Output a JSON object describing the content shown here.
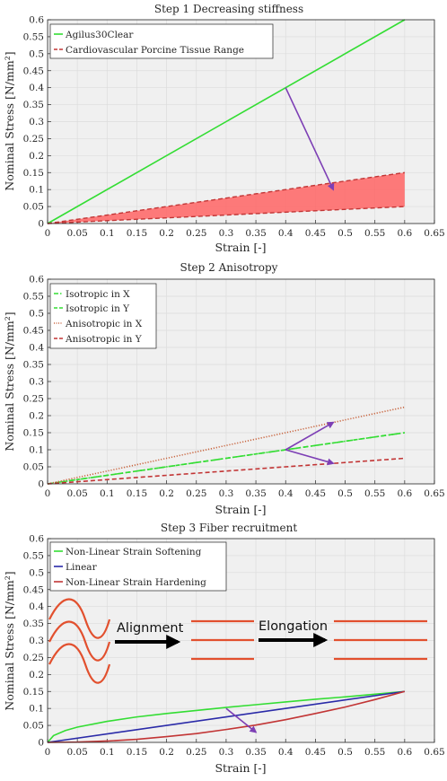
{
  "colors": {
    "background": "#f0f0f0",
    "grid": "#dcdcdc",
    "axis": "#262626",
    "green": "#33dd33",
    "red": "#d22c2c",
    "brown_red": "#c8653f",
    "fill_red": "#ff6464",
    "purple": "#7d3fb5",
    "blue": "#2a2aa8",
    "annot_red": "#e2502e"
  },
  "chart_data": [
    {
      "type": "line",
      "title": "Step 1 Decreasing stiffness",
      "xlabel": "Strain [-]",
      "ylabel": "Nominal Stress [N/mm²]",
      "xlim": [
        0,
        0.65
      ],
      "ylim": [
        0,
        0.6
      ],
      "xticks": [
        "0",
        "0.05",
        "0.1",
        "0.15",
        "0.2",
        "0.25",
        "0.3",
        "0.35",
        "0.4",
        "0.45",
        "0.5",
        "0.55",
        "0.6",
        "0.65"
      ],
      "yticks": [
        "0",
        "0.05",
        "0.1",
        "0.15",
        "0.2",
        "0.25",
        "0.3",
        "0.35",
        "0.4",
        "0.45",
        "0.5",
        "0.55",
        "0.6"
      ],
      "grid": true,
      "legend_position": "top-left",
      "series": [
        {
          "name": "Agilus30Clear",
          "style": "solid",
          "color": "#33dd33",
          "x": [
            0,
            0.6
          ],
          "y": [
            0,
            0.6
          ]
        },
        {
          "name": "Cardiovascular Porcine Tissue Range",
          "style": "dashed",
          "color": "#c23535",
          "x": [
            0,
            0.6
          ],
          "y_upper": [
            0,
            0.15
          ],
          "y_lower": [
            0,
            0.05
          ]
        }
      ],
      "arrows": [
        {
          "from": [
            0.4,
            0.4
          ],
          "to": [
            0.48,
            0.1
          ]
        }
      ]
    },
    {
      "type": "line",
      "title": "Step 2 Anisotropy",
      "xlabel": "Strain [-]",
      "ylabel": "Nominal Stress [N/mm²]",
      "xlim": [
        0,
        0.65
      ],
      "ylim": [
        0,
        0.6
      ],
      "xticks": [
        "0",
        "0.05",
        "0.1",
        "0.15",
        "0.2",
        "0.25",
        "0.3",
        "0.35",
        "0.4",
        "0.45",
        "0.5",
        "0.55",
        "0.6",
        "0.65"
      ],
      "yticks": [
        "0",
        "0.05",
        "0.1",
        "0.15",
        "0.2",
        "0.25",
        "0.3",
        "0.35",
        "0.4",
        "0.45",
        "0.5",
        "0.55",
        "0.6"
      ],
      "grid": true,
      "legend_position": "top-left",
      "series": [
        {
          "name": "Isotropic in X",
          "style": "dashdot",
          "color": "#33dd33",
          "x": [
            0,
            0.6
          ],
          "y": [
            0,
            0.15
          ]
        },
        {
          "name": "Isotropic in Y",
          "style": "dashed",
          "color": "#33dd33",
          "x": [
            0,
            0.6
          ],
          "y": [
            0,
            0.15
          ]
        },
        {
          "name": "Anisotropic in X",
          "style": "dotted",
          "color": "#c8653f",
          "x": [
            0,
            0.6
          ],
          "y": [
            0,
            0.225
          ]
        },
        {
          "name": "Anisotropic in Y",
          "style": "dashed",
          "color": "#c23535",
          "x": [
            0,
            0.6
          ],
          "y": [
            0,
            0.075
          ]
        }
      ],
      "arrows": [
        {
          "from": [
            0.4,
            0.1
          ],
          "to": [
            0.48,
            0.18
          ]
        },
        {
          "from": [
            0.4,
            0.1
          ],
          "to": [
            0.48,
            0.06
          ]
        }
      ]
    },
    {
      "type": "line",
      "title": "Step 3 Fiber recruitment",
      "xlabel": "Strain [-]",
      "ylabel": "Nominal Stress [N/mm²]",
      "xlim": [
        0,
        0.65
      ],
      "ylim": [
        0,
        0.6
      ],
      "xticks": [
        "0",
        "0.05",
        "0.1",
        "0.15",
        "0.2",
        "0.25",
        "0.3",
        "0.35",
        "0.4",
        "0.45",
        "0.5",
        "0.55",
        "0.6",
        "0.65"
      ],
      "yticks": [
        "0",
        "0.05",
        "0.1",
        "0.15",
        "0.2",
        "0.25",
        "0.3",
        "0.35",
        "0.4",
        "0.45",
        "0.5",
        "0.55",
        "0.6"
      ],
      "grid": true,
      "legend_position": "top-left",
      "series": [
        {
          "name": "Non-Linear Strain Softening",
          "style": "solid",
          "color": "#33dd33",
          "x": [
            0,
            0.01,
            0.03,
            0.05,
            0.1,
            0.15,
            0.2,
            0.25,
            0.3,
            0.35,
            0.4,
            0.45,
            0.5,
            0.55,
            0.6
          ],
          "y": [
            0,
            0.02,
            0.035,
            0.045,
            0.062,
            0.075,
            0.085,
            0.094,
            0.103,
            0.111,
            0.119,
            0.127,
            0.134,
            0.142,
            0.15
          ]
        },
        {
          "name": "Linear",
          "style": "solid",
          "color": "#2a2aa8",
          "x": [
            0,
            0.6
          ],
          "y": [
            0,
            0.15
          ]
        },
        {
          "name": "Non-Linear Strain Hardening",
          "style": "solid",
          "color": "#c23535",
          "x": [
            0,
            0.05,
            0.1,
            0.15,
            0.2,
            0.25,
            0.3,
            0.35,
            0.4,
            0.45,
            0.5,
            0.55,
            0.6
          ],
          "y": [
            0,
            0.001,
            0.004,
            0.009,
            0.017,
            0.026,
            0.038,
            0.051,
            0.067,
            0.085,
            0.104,
            0.126,
            0.15
          ]
        }
      ],
      "arrows": [
        {
          "from": [
            0.3,
            0.1
          ],
          "to": [
            0.35,
            0.03
          ]
        }
      ],
      "annotations": [
        "Alignment",
        "Elongation"
      ]
    }
  ]
}
